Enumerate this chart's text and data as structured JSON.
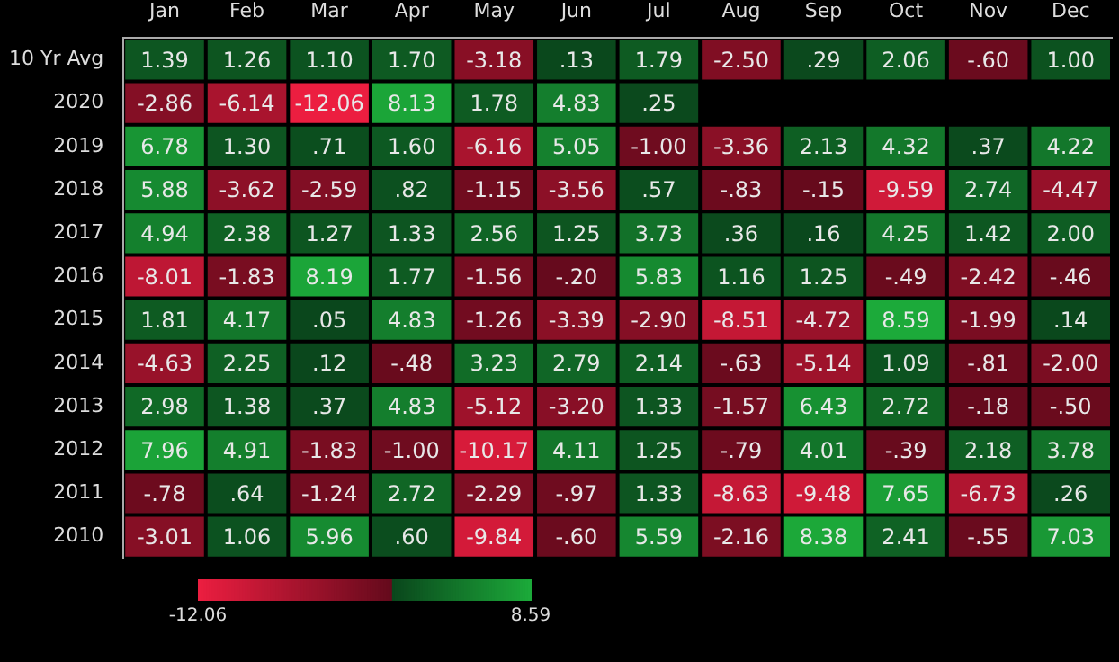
{
  "chart_data": {
    "type": "heatmap",
    "categories": [
      "Jan",
      "Feb",
      "Mar",
      "Apr",
      "May",
      "Jun",
      "Jul",
      "Aug",
      "Sep",
      "Oct",
      "Nov",
      "Dec"
    ],
    "y_categories": [
      "10 Yr Avg",
      "2020",
      "2019",
      "2018",
      "2017",
      "2016",
      "2015",
      "2014",
      "2013",
      "2012",
      "2011",
      "2010"
    ],
    "cells": [
      [
        1.39,
        1.26,
        1.1,
        1.7,
        -3.18,
        0.13,
        1.79,
        -2.5,
        0.29,
        2.06,
        -0.6,
        1.0
      ],
      [
        -2.86,
        -6.14,
        -12.06,
        8.13,
        1.78,
        4.83,
        0.25,
        null,
        null,
        null,
        null,
        null
      ],
      [
        6.78,
        1.3,
        0.71,
        1.6,
        -6.16,
        5.05,
        -1.0,
        -3.36,
        2.13,
        4.32,
        0.37,
        4.22
      ],
      [
        5.88,
        -3.62,
        -2.59,
        0.82,
        -1.15,
        -3.56,
        0.57,
        -0.83,
        -0.15,
        -9.59,
        2.74,
        -4.47
      ],
      [
        4.94,
        2.38,
        1.27,
        1.33,
        2.56,
        1.25,
        3.73,
        0.36,
        0.16,
        4.25,
        1.42,
        2.0
      ],
      [
        -8.01,
        -1.83,
        8.19,
        1.77,
        -1.56,
        -0.2,
        5.83,
        1.16,
        1.25,
        -0.49,
        -2.42,
        -0.46
      ],
      [
        1.81,
        4.17,
        0.05,
        4.83,
        -1.26,
        -3.39,
        -2.9,
        -8.51,
        -4.72,
        8.59,
        -1.99,
        0.14
      ],
      [
        -4.63,
        2.25,
        0.12,
        -0.48,
        3.23,
        2.79,
        2.14,
        -0.63,
        -5.14,
        1.09,
        -0.81,
        -2.0
      ],
      [
        2.98,
        1.38,
        0.37,
        4.83,
        -5.12,
        -3.2,
        1.33,
        -1.57,
        6.43,
        2.72,
        -0.18,
        -0.5
      ],
      [
        7.96,
        4.91,
        -1.83,
        -1.0,
        -10.17,
        4.11,
        1.25,
        -0.79,
        4.01,
        -0.39,
        2.18,
        3.78
      ],
      [
        -0.78,
        0.64,
        -1.24,
        2.72,
        -2.29,
        -0.97,
        1.33,
        -8.63,
        -9.48,
        7.65,
        -6.73,
        0.26
      ],
      [
        -3.01,
        1.06,
        5.96,
        0.6,
        -9.84,
        -0.6,
        5.59,
        -2.16,
        8.38,
        2.41,
        -0.55,
        7.03
      ]
    ],
    "cell_labels": [
      [
        "1.39",
        "1.26",
        "1.10",
        "1.70",
        "-3.18",
        ".13",
        "1.79",
        "-2.50",
        ".29",
        "2.06",
        "-.60",
        "1.00"
      ],
      [
        "-2.86",
        "-6.14",
        "-12.06",
        "8.13",
        "1.78",
        "4.83",
        ".25",
        null,
        null,
        null,
        null,
        null
      ],
      [
        "6.78",
        "1.30",
        ".71",
        "1.60",
        "-6.16",
        "5.05",
        "-1.00",
        "-3.36",
        "2.13",
        "4.32",
        ".37",
        "4.22"
      ],
      [
        "5.88",
        "-3.62",
        "-2.59",
        ".82",
        "-1.15",
        "-3.56",
        ".57",
        "-.83",
        "-.15",
        "-9.59",
        "2.74",
        "-4.47"
      ],
      [
        "4.94",
        "2.38",
        "1.27",
        "1.33",
        "2.56",
        "1.25",
        "3.73",
        ".36",
        ".16",
        "4.25",
        "1.42",
        "2.00"
      ],
      [
        "-8.01",
        "-1.83",
        "8.19",
        "1.77",
        "-1.56",
        "-.20",
        "5.83",
        "1.16",
        "1.25",
        "-.49",
        "-2.42",
        "-.46"
      ],
      [
        "1.81",
        "4.17",
        ".05",
        "4.83",
        "-1.26",
        "-3.39",
        "-2.90",
        "-8.51",
        "-4.72",
        "8.59",
        "-1.99",
        ".14"
      ],
      [
        "-4.63",
        "2.25",
        ".12",
        "-.48",
        "3.23",
        "2.79",
        "2.14",
        "-.63",
        "-5.14",
        "1.09",
        "-.81",
        "-2.00"
      ],
      [
        "2.98",
        "1.38",
        ".37",
        "4.83",
        "-5.12",
        "-3.20",
        "1.33",
        "-1.57",
        "6.43",
        "2.72",
        "-.18",
        "-.50"
      ],
      [
        "7.96",
        "4.91",
        "-1.83",
        "-1.00",
        "-10.17",
        "4.11",
        "1.25",
        "-.79",
        "4.01",
        "-.39",
        "2.18",
        "3.78"
      ],
      [
        "-.78",
        ".64",
        "-1.24",
        "2.72",
        "-2.29",
        "-.97",
        "1.33",
        "-8.63",
        "-9.48",
        "7.65",
        "-6.73",
        ".26"
      ],
      [
        "-3.01",
        "1.06",
        "5.96",
        ".60",
        "-9.84",
        "-.60",
        "5.59",
        "-2.16",
        "8.38",
        "2.41",
        "-.55",
        "7.03"
      ]
    ],
    "clim": [
      -12.06,
      8.59
    ],
    "cticks": [
      -12.06,
      8.59
    ]
  }
}
